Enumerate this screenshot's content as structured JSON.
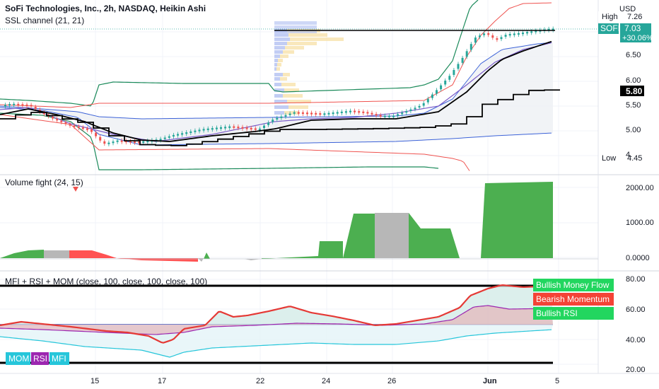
{
  "header": {
    "title": "SoFi Technologies, Inc., 2h, NASDAQ, Heikin Ashi",
    "ssl_label": "SSL channel (21, 21)",
    "currency": "USD"
  },
  "price_axis": {
    "ticks": [
      "6.50",
      "6.00",
      "5.50",
      "5.00"
    ],
    "high_label": "High",
    "high_value": "7.26",
    "low_label": "Low",
    "low_value": "4.45",
    "symbol": "SOFI",
    "last_price": "7.03",
    "change_pct": "+30.06%",
    "ssl_value": "5.80",
    "partial_tick": "4."
  },
  "volume_panel": {
    "label": "Volume fight (24, 15)",
    "ticks": [
      "2000.00",
      "1000.00",
      "0.0000"
    ]
  },
  "osc_panel": {
    "label": "MFI + RSI + MOM (close, 100, close, 100, close, 100)",
    "ticks": [
      "80.00",
      "60.00",
      "40.00",
      "20.00"
    ],
    "tag_money_flow": "Bullish Money Flow",
    "tag_momentum": "Bearish Momentum",
    "tag_rsi": "Bullish RSI",
    "legend_mom": "MOM",
    "legend_rsi": "RSI",
    "legend_mfi": "MFI"
  },
  "time_axis": {
    "ticks": [
      "15",
      "17",
      "22",
      "24",
      "26",
      "Jun",
      "5"
    ]
  },
  "colors": {
    "up": "#26a69a",
    "down": "#ef5350",
    "ssl_main": "#000000",
    "bb_outer": "#1b8a5a",
    "bb_red": "#ef5350",
    "bb_blue": "#3d63d8",
    "vol_green": "#4caf50",
    "vol_red": "#ff5252",
    "vol_gray": "#b7b7b7",
    "rsi_red": "#e53935",
    "mom_purple": "#9c27b0",
    "mfi_teal": "#26c6da"
  }
}
